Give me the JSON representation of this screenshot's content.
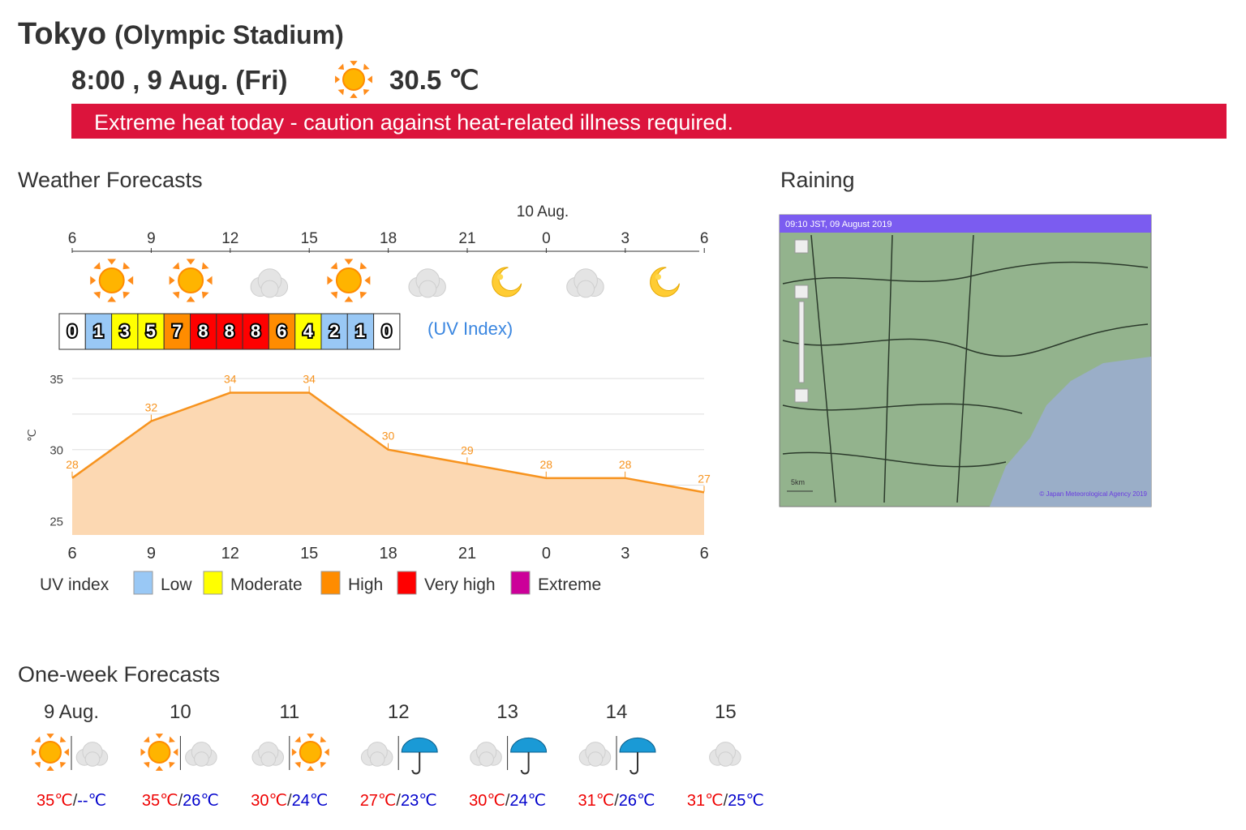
{
  "header": {
    "title": "Tokyo",
    "subtitle": "(Olympic Stadium)",
    "time": "8:00 , 9 Aug. (Fri)",
    "temperature": "30.5 ℃",
    "alert": "Extreme heat today - caution against heat-related illness required."
  },
  "forecast": {
    "heading": "Weather Forecasts",
    "date_label": "10 Aug.",
    "hours": [
      "6",
      "9",
      "12",
      "15",
      "18",
      "21",
      "0",
      "3",
      "6"
    ],
    "uv_values": [
      0,
      1,
      3,
      5,
      7,
      8,
      8,
      8,
      6,
      4,
      2,
      1,
      0
    ],
    "uv_label": "(UV Index)",
    "uv_legend": {
      "title": "UV index",
      "items": [
        {
          "label": "Low",
          "color": "#99c8f5"
        },
        {
          "label": "Moderate",
          "color": "#ffff00"
        },
        {
          "label": "High",
          "color": "#ff8c00"
        },
        {
          "label": "Very high",
          "color": "#ff0000"
        },
        {
          "label": "Extreme",
          "color": "#cc0099"
        }
      ]
    }
  },
  "temperature_chart": {
    "type": "area",
    "unit": "℃",
    "values": [
      28,
      32,
      34,
      34,
      30,
      29,
      28,
      28,
      27
    ],
    "ylim": [
      24,
      35
    ],
    "yticks": [
      25,
      30,
      35
    ],
    "ygrid": [
      25,
      27.5,
      30,
      32.5,
      35
    ],
    "color": "#f7931e",
    "fill": "#fcd8b2"
  },
  "raining": {
    "heading": "Raining",
    "timestamp": "09:10 JST, 09 August 2019",
    "scale": "5km",
    "credit": "© Japan Meteorological Agency 2019"
  },
  "weekly": {
    "heading": "One-week Forecasts",
    "separator": "/",
    "days": [
      {
        "date": "9 Aug.",
        "high": "35℃",
        "low": "--℃"
      },
      {
        "date": "10",
        "high": "35℃",
        "low": "26℃"
      },
      {
        "date": "11",
        "high": "30℃",
        "low": "24℃"
      },
      {
        "date": "12",
        "high": "27℃",
        "low": "23℃"
      },
      {
        "date": "13",
        "high": "30℃",
        "low": "24℃"
      },
      {
        "date": "14",
        "high": "31℃",
        "low": "26℃"
      },
      {
        "date": "15",
        "high": "31℃",
        "low": "25℃"
      }
    ]
  }
}
